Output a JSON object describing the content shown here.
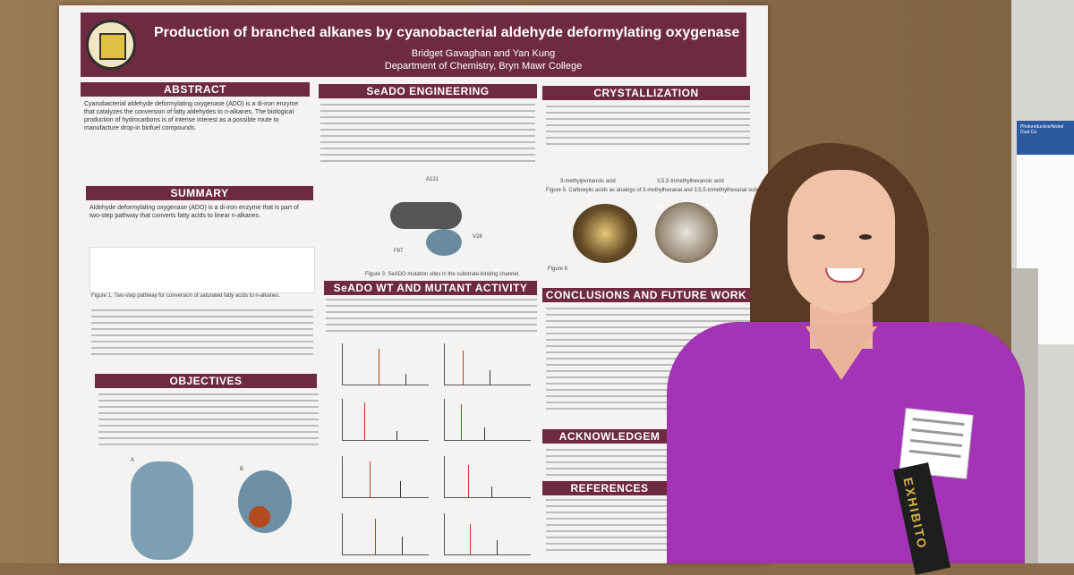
{
  "poster": {
    "title": "Production of branched alkanes by cyanobacterial aldehyde deformylating oxygenase",
    "authors": "Bridget Gavaghan and Yan Kung",
    "department": "Department of Chemistry, Bryn Mawr College",
    "sections": {
      "abstract": "ABSTRACT",
      "summary": "SUMMARY",
      "objectives": "OBJECTIVES",
      "seado_engineering": "SeADO ENGINEERING",
      "wt_mutant_activity": "SeADO WT AND MUTANT ACTIVITY",
      "crystallization": "CRYSTALLIZATION",
      "conclusions": "CONCLUSIONS AND FUTURE WORK",
      "acknowledgements": "ACKNOWLEDGEM",
      "references": "REFERENCES"
    },
    "abstract_text": "Cyanobacterial aldehyde deformylating oxygenase (ADO) is a di-iron enzyme that catalyzes the conversion of fatty aldehydes to n-alkanes. The biological production of hydrocarbons is of intense interest as a possible route to manufacture drop-in biofuel compounds.",
    "summary_text": "Aldehyde deformylating oxygenase (ADO) is a di-iron enzyme that is part of two-step pathway that converts fatty acids to linear n-alkanes.",
    "figure1_caption": "Figure 1. Two-step pathway for conversion of saturated fatty acids to n-alkanes.",
    "figure3_caption": "Figure 3. SeADO mutation sites in the substrate-binding channel.",
    "figure5_caption": "Figure 5. Carboxylic acids as analogs of 3-methylhexanal and 3,5,5-trimethylhexanal substrates.",
    "figure6_caption": "Figure 6.",
    "mutation_labels": [
      "A121",
      "V28",
      "F87"
    ],
    "panel_labels": [
      "A",
      "B",
      "A",
      "B"
    ],
    "acid_labels": [
      "3-methylpentanoic acid",
      "3,5,5-trimethylhexanoic acid"
    ],
    "right_poster_header": "Photoreductive/Nickel Dual Ca"
  },
  "sash_text": "EXHIBITO"
}
